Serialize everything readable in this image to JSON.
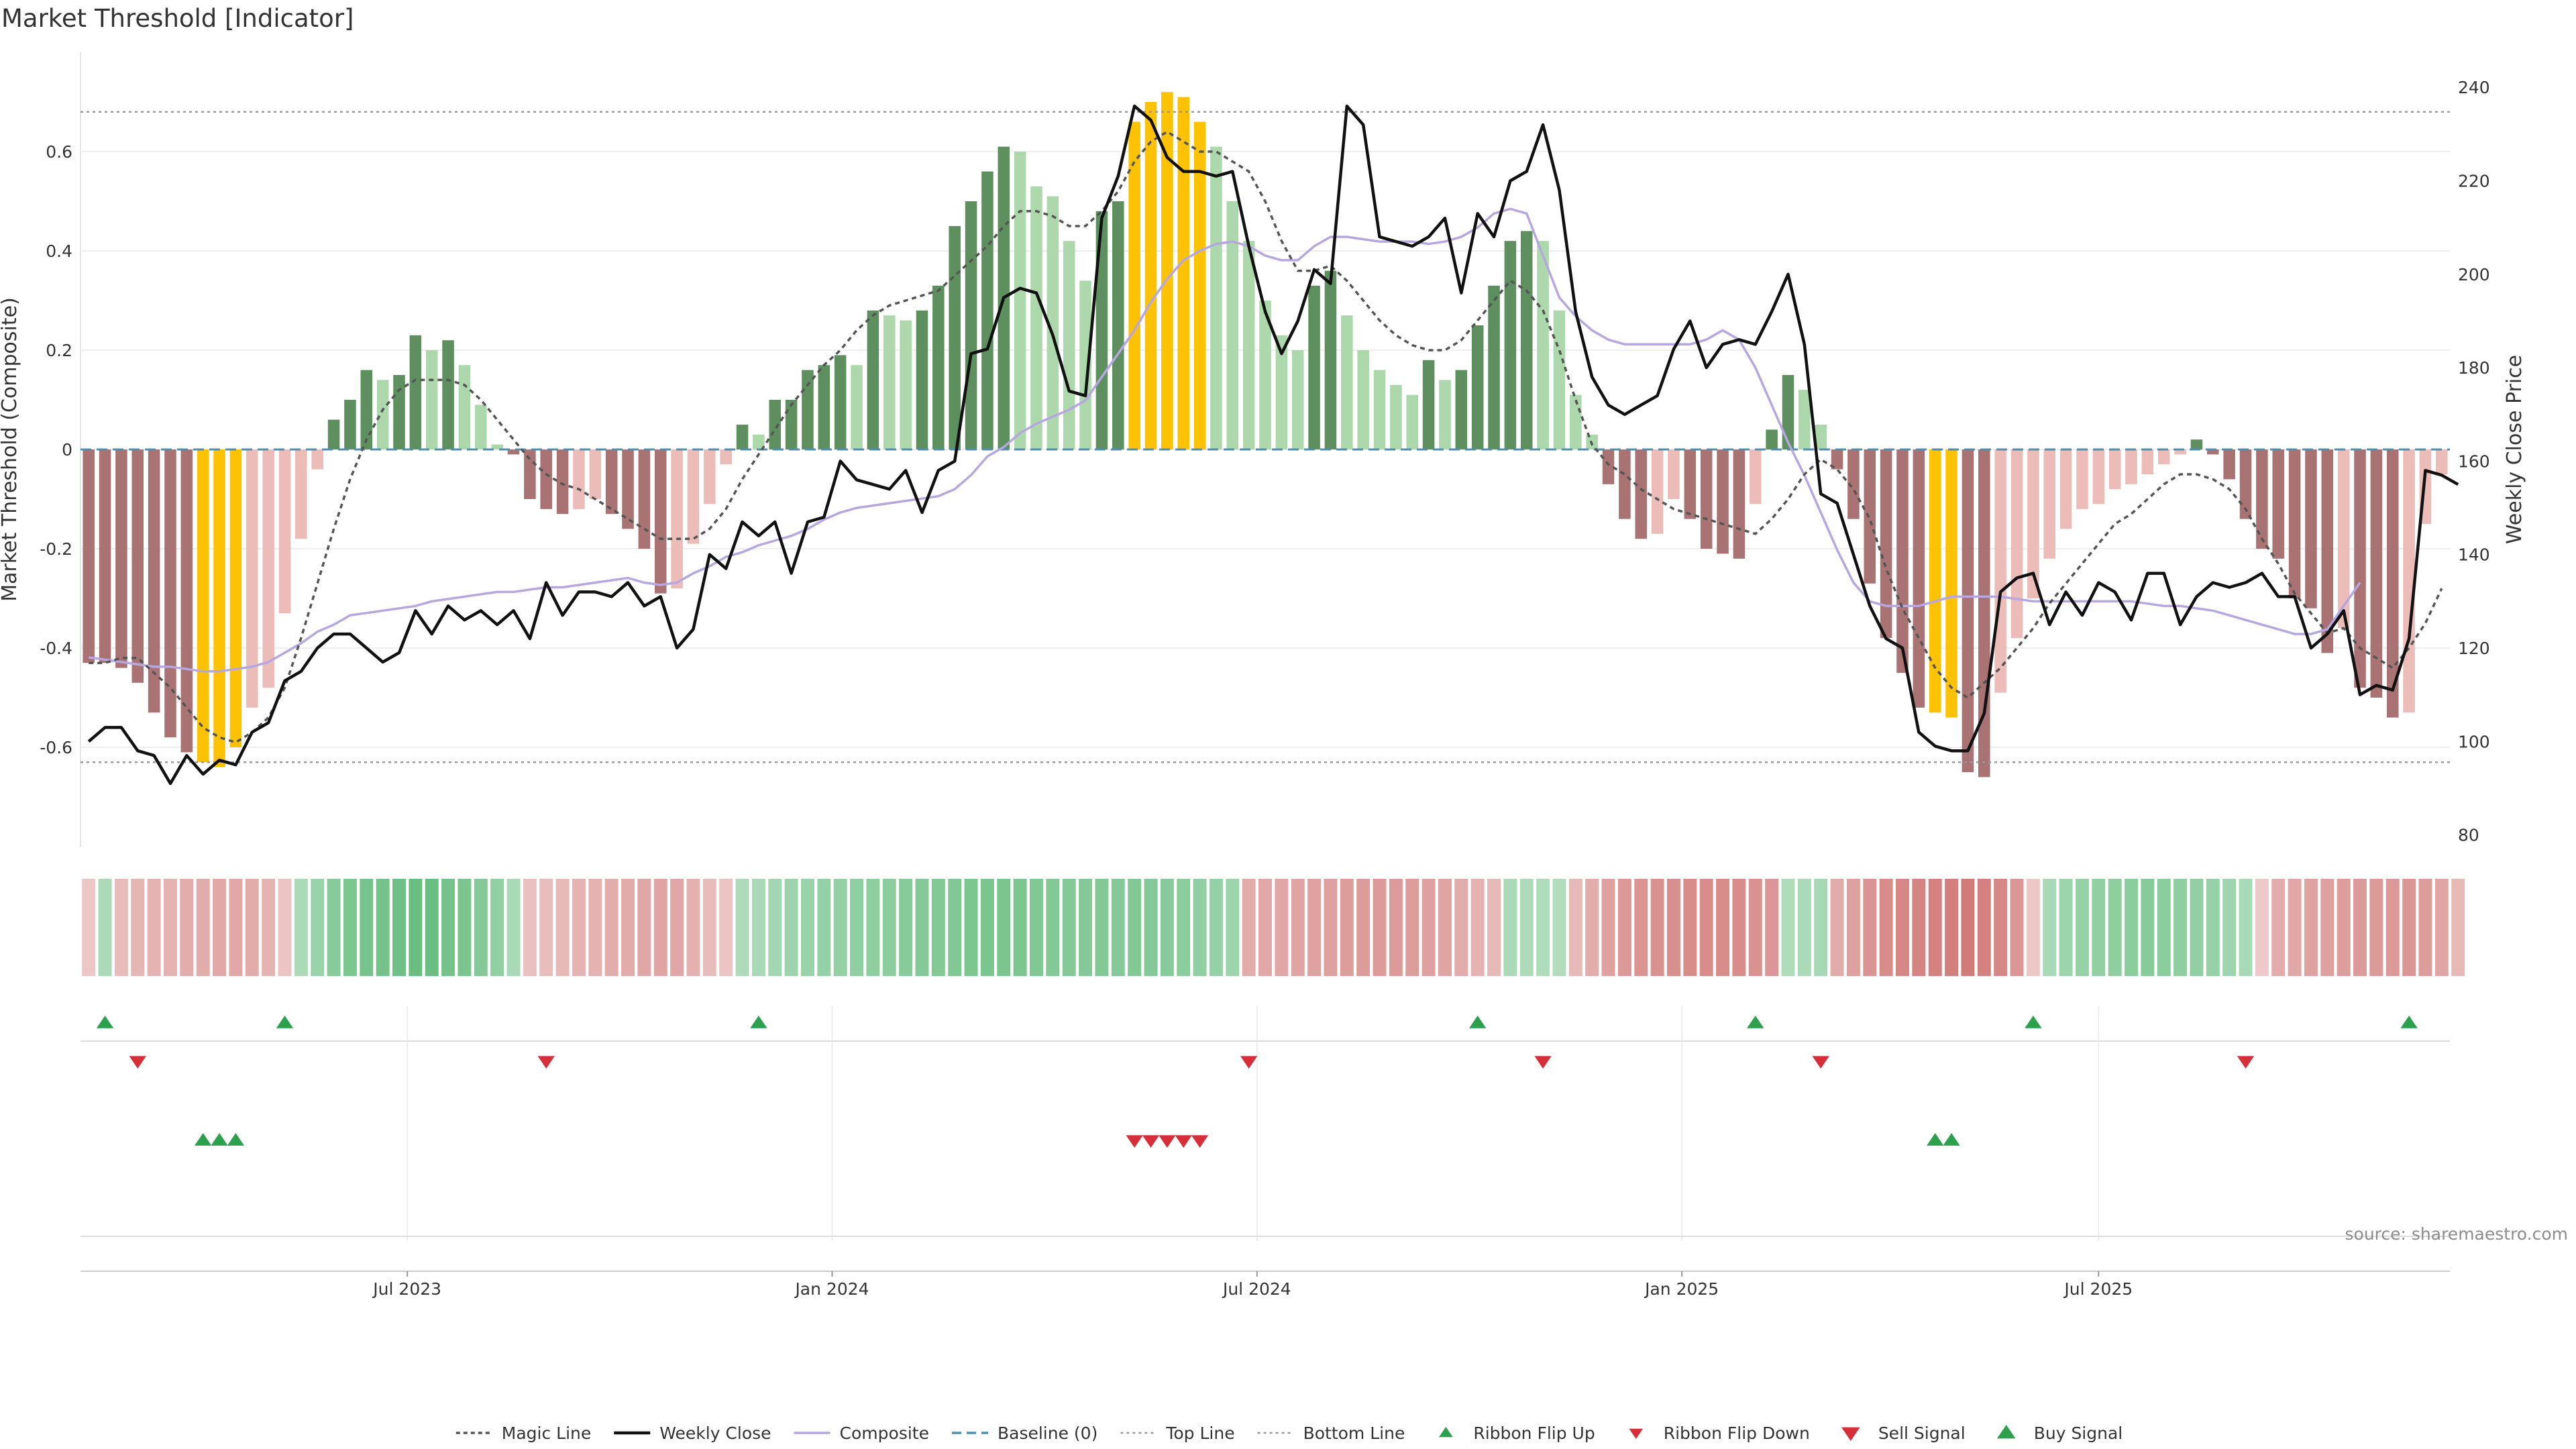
{
  "title": "Market Threshold [Indicator]",
  "source": "source: sharemaestro.com",
  "colors": {
    "bull_strong": "#5e8f5e",
    "bull_weak": "#acd8ac",
    "bear_strong": "#a87372",
    "bear_weak": "#ecbcb8",
    "extreme": "#fcc203",
    "weekly_close": "#111111",
    "composite_line": "#b7a7e0",
    "magic_line": "#555555",
    "baseline": "#4f8fb0",
    "threshold_lines": "#999999",
    "signal_up": "#2ca04c",
    "signal_down": "#d62f3a"
  },
  "chart_data": {
    "type": "bar",
    "left_axis": {
      "label": "Market Threshold (Composite)",
      "ylim": [
        -0.8,
        0.8
      ],
      "ticks": [
        -0.6,
        -0.4,
        -0.2,
        0,
        0.2,
        0.4,
        0.6
      ]
    },
    "right_axis": {
      "label": "Weekly Close Price",
      "ylim": [
        77.5,
        247.5
      ],
      "ticks": [
        80,
        100,
        120,
        140,
        160,
        180,
        200,
        220,
        240
      ]
    },
    "x_ticks": [
      {
        "label": "Jul 2023",
        "week": 19.5
      },
      {
        "label": "Jan 2024",
        "week": 45.5
      },
      {
        "label": "Jul 2024",
        "week": 71.5
      },
      {
        "label": "Jan 2025",
        "week": 97.5
      },
      {
        "label": "Jul 2025",
        "week": 123
      }
    ],
    "top_line": 0.68,
    "bottom_line": -0.63,
    "baseline": 0,
    "composite": [
      -0.43,
      -0.43,
      -0.44,
      -0.47,
      -0.53,
      -0.58,
      -0.61,
      -0.63,
      -0.64,
      -0.6,
      -0.52,
      -0.48,
      -0.33,
      -0.18,
      -0.04,
      0.06,
      0.1,
      0.16,
      0.14,
      0.15,
      0.23,
      0.2,
      0.22,
      0.17,
      0.09,
      0.01,
      -0.01,
      -0.1,
      -0.12,
      -0.13,
      -0.12,
      -0.1,
      -0.13,
      -0.16,
      -0.2,
      -0.29,
      -0.28,
      -0.19,
      -0.11,
      -0.03,
      0.05,
      0.03,
      0.1,
      0.1,
      0.16,
      0.17,
      0.19,
      0.17,
      0.28,
      0.27,
      0.26,
      0.28,
      0.33,
      0.45,
      0.5,
      0.56,
      0.61,
      0.6,
      0.53,
      0.51,
      0.42,
      0.34,
      0.48,
      0.5,
      0.66,
      0.7,
      0.72,
      0.71,
      0.66,
      0.61,
      0.5,
      0.42,
      0.3,
      0.23,
      0.2,
      0.33,
      0.36,
      0.27,
      0.2,
      0.16,
      0.13,
      0.11,
      0.18,
      0.14,
      0.16,
      0.25,
      0.33,
      0.42,
      0.44,
      0.42,
      0.28,
      0.11,
      0.03,
      -0.07,
      -0.14,
      -0.18,
      -0.17,
      -0.1,
      -0.14,
      -0.2,
      -0.21,
      -0.22,
      -0.11,
      0.04,
      0.15,
      0.12,
      0.05,
      -0.04,
      -0.14,
      -0.27,
      -0.38,
      -0.45,
      -0.52,
      -0.53,
      -0.54,
      -0.65,
      -0.66,
      -0.49,
      -0.38,
      -0.3,
      -0.22,
      -0.16,
      -0.12,
      -0.11,
      -0.08,
      -0.07,
      -0.05,
      -0.03,
      -0.01,
      0.02,
      -0.01,
      -0.06,
      -0.14,
      -0.2,
      -0.22,
      -0.3,
      -0.32,
      -0.41,
      -0.36,
      -0.48,
      -0.5,
      -0.54,
      -0.53,
      -0.15,
      -0.05
    ],
    "extreme_weeks": [
      7,
      8,
      9,
      64,
      65,
      66,
      67,
      68,
      113,
      114
    ],
    "weekly_close": [
      100,
      103,
      103,
      98,
      97,
      91,
      97,
      93,
      96,
      95,
      102,
      104,
      113,
      115,
      120,
      123,
      123,
      120,
      117,
      119,
      128,
      123,
      129,
      126,
      128,
      125,
      128,
      122,
      134,
      127,
      132,
      132,
      131,
      134,
      129,
      131,
      120,
      124,
      140,
      137,
      147,
      144,
      147,
      136,
      147,
      148,
      160,
      156,
      155,
      154,
      158,
      149,
      158,
      160,
      183,
      184,
      195,
      197,
      196,
      187,
      175,
      174,
      212,
      221,
      236,
      233,
      225,
      222,
      222,
      221,
      222,
      206,
      192,
      183,
      190,
      201,
      198,
      236,
      232,
      208,
      207,
      206,
      208,
      212,
      196,
      213,
      208,
      220,
      222,
      232,
      218,
      192,
      178,
      172,
      170,
      172,
      174,
      184,
      190,
      180,
      185,
      186,
      185,
      192,
      200,
      185,
      153,
      151,
      140,
      129,
      122,
      120,
      102,
      99,
      98,
      98,
      106,
      132,
      135,
      136,
      125,
      132,
      127,
      134,
      132,
      126,
      136,
      136,
      125,
      131,
      134,
      133,
      134,
      136,
      131,
      131,
      120,
      123,
      128,
      110,
      112,
      111,
      122,
      158,
      157,
      155
    ],
    "composite_line": [
      118,
      117.5,
      117,
      116.5,
      116,
      116,
      115.5,
      115,
      115,
      115.5,
      116,
      117,
      119,
      121,
      123.5,
      125,
      127,
      127.5,
      128,
      128.5,
      129,
      130,
      130.5,
      131,
      131.5,
      132,
      132,
      132.5,
      133,
      133,
      133.5,
      134,
      134.5,
      135,
      134,
      133.5,
      134,
      136,
      137.5,
      139.5,
      140.5,
      142,
      143,
      144,
      145.5,
      147.5,
      149,
      150,
      150.5,
      151,
      151.5,
      152,
      152.5,
      154,
      157,
      161,
      163,
      166,
      168,
      169.5,
      171,
      173,
      178,
      183,
      188,
      194,
      199,
      203,
      205,
      206.5,
      207,
      206,
      204,
      203,
      203,
      206,
      208,
      208,
      207.5,
      207,
      207,
      207,
      206.5,
      207,
      208,
      210,
      213,
      214,
      213,
      204,
      195,
      191,
      188,
      186,
      185,
      185,
      185,
      185,
      185,
      186,
      188,
      186,
      180,
      172,
      164,
      157,
      149,
      141,
      134,
      130,
      129,
      129,
      129,
      130,
      131,
      131,
      131,
      131,
      130.5,
      130,
      130,
      130,
      130,
      130,
      130,
      130,
      129.5,
      129,
      129,
      128.5,
      128,
      127,
      126,
      125,
      124,
      123,
      123,
      124,
      129,
      134
    ],
    "magic_line": [
      -0.43,
      -0.43,
      -0.42,
      -0.42,
      -0.45,
      -0.48,
      -0.52,
      -0.56,
      -0.58,
      -0.59,
      -0.57,
      -0.54,
      -0.48,
      -0.38,
      -0.27,
      -0.16,
      -0.06,
      0.02,
      0.08,
      0.12,
      0.14,
      0.14,
      0.14,
      0.13,
      0.1,
      0.06,
      0.02,
      -0.02,
      -0.05,
      -0.07,
      -0.08,
      -0.1,
      -0.12,
      -0.14,
      -0.16,
      -0.18,
      -0.18,
      -0.18,
      -0.16,
      -0.12,
      -0.06,
      -0.01,
      0.04,
      0.09,
      0.13,
      0.17,
      0.2,
      0.24,
      0.27,
      0.29,
      0.3,
      0.31,
      0.32,
      0.35,
      0.38,
      0.41,
      0.45,
      0.48,
      0.48,
      0.47,
      0.45,
      0.45,
      0.48,
      0.52,
      0.58,
      0.62,
      0.64,
      0.62,
      0.6,
      0.6,
      0.58,
      0.56,
      0.5,
      0.42,
      0.36,
      0.36,
      0.37,
      0.34,
      0.3,
      0.26,
      0.23,
      0.21,
      0.2,
      0.2,
      0.22,
      0.26,
      0.3,
      0.34,
      0.32,
      0.28,
      0.2,
      0.1,
      0.01,
      -0.03,
      -0.05,
      -0.08,
      -0.1,
      -0.12,
      -0.13,
      -0.14,
      -0.15,
      -0.16,
      -0.17,
      -0.14,
      -0.1,
      -0.05,
      -0.02,
      -0.04,
      -0.08,
      -0.14,
      -0.24,
      -0.32,
      -0.38,
      -0.44,
      -0.48,
      -0.5,
      -0.47,
      -0.44,
      -0.4,
      -0.36,
      -0.31,
      -0.27,
      -0.23,
      -0.19,
      -0.15,
      -0.13,
      -0.1,
      -0.07,
      -0.05,
      -0.05,
      -0.06,
      -0.08,
      -0.12,
      -0.18,
      -0.23,
      -0.29,
      -0.33,
      -0.37,
      -0.36,
      -0.4,
      -0.42,
      -0.44,
      -0.4,
      -0.35,
      -0.28
    ],
    "ribbon": [
      -0.18,
      0.28,
      -0.27,
      -0.32,
      -0.33,
      -0.34,
      -0.38,
      -0.4,
      -0.42,
      -0.43,
      -0.4,
      -0.33,
      -0.2,
      0.28,
      0.4,
      0.52,
      0.6,
      0.64,
      0.66,
      0.7,
      0.74,
      0.72,
      0.66,
      0.62,
      0.55,
      0.45,
      0.3,
      -0.22,
      -0.25,
      -0.3,
      -0.33,
      -0.35,
      -0.38,
      -0.4,
      -0.44,
      -0.46,
      -0.44,
      -0.36,
      -0.26,
      -0.2,
      0.27,
      0.3,
      0.34,
      0.37,
      0.4,
      0.42,
      0.44,
      0.46,
      0.48,
      0.5,
      0.52,
      0.54,
      0.56,
      0.58,
      0.6,
      0.62,
      0.62,
      0.6,
      0.58,
      0.56,
      0.54,
      0.55,
      0.56,
      0.55,
      0.56,
      0.54,
      0.52,
      0.5,
      0.46,
      0.42,
      0.38,
      -0.4,
      -0.42,
      -0.44,
      -0.46,
      -0.48,
      -0.5,
      -0.52,
      -0.53,
      -0.54,
      -0.54,
      -0.52,
      -0.5,
      -0.46,
      -0.4,
      -0.34,
      -0.3,
      0.28,
      0.26,
      0.25,
      0.24,
      -0.28,
      -0.38,
      -0.48,
      -0.56,
      -0.6,
      -0.62,
      -0.64,
      -0.66,
      -0.66,
      -0.66,
      -0.65,
      -0.62,
      -0.58,
      0.25,
      0.28,
      0.32,
      -0.4,
      -0.5,
      -0.6,
      -0.66,
      -0.7,
      -0.73,
      -0.76,
      -0.78,
      -0.8,
      -0.76,
      -0.7,
      -0.58,
      -0.18,
      0.3,
      0.38,
      0.42,
      0.45,
      0.48,
      0.5,
      0.52,
      0.5,
      0.48,
      0.45,
      0.42,
      0.36,
      0.3,
      -0.15,
      -0.38,
      -0.44,
      -0.48,
      -0.5,
      -0.52,
      -0.54,
      -0.55,
      -0.56,
      -0.57,
      -0.52,
      -0.45,
      -0.3
    ],
    "ribbon_flip_up_weeks": [
      1,
      12,
      41,
      85,
      102,
      119,
      142
    ],
    "ribbon_flip_down_weeks": [
      3,
      28,
      71,
      89,
      106,
      132
    ],
    "sell_signal_weeks": [
      64,
      65,
      66,
      67,
      68
    ],
    "buy_signal_weeks": [
      7,
      8,
      9,
      113,
      114
    ],
    "legend": [
      "Magic Line",
      "Weekly Close",
      "Composite",
      "Baseline (0)",
      "Top Line",
      "Bottom Line",
      "Ribbon Flip Up",
      "Ribbon Flip Down",
      "Sell Signal",
      "Buy Signal"
    ],
    "legend_position": "bottom-center",
    "grid": true
  }
}
